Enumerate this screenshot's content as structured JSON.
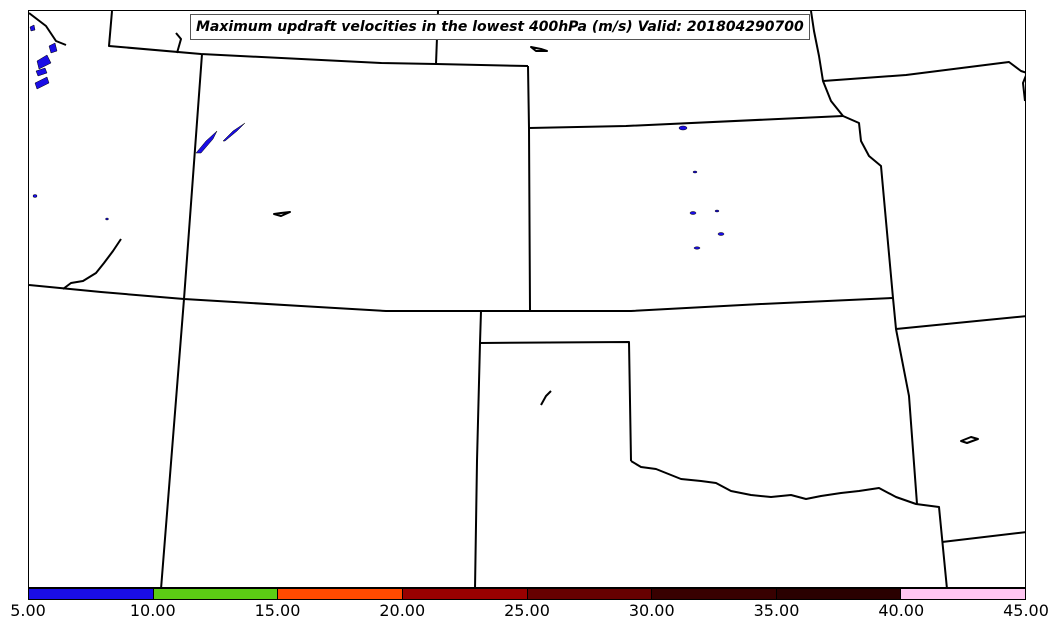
{
  "title": "Maximum updraft velocities in the lowest 400hPa (m/s) Valid: 201804290700",
  "colorbar": {
    "ticks": [
      "5.00",
      "10.00",
      "15.00",
      "20.00",
      "25.00",
      "30.00",
      "35.00",
      "40.00",
      "45.00"
    ],
    "colors": [
      "#1a0de6",
      "#5ccc14",
      "#ff4a00",
      "#990000",
      "#660000",
      "#380000",
      "#2a0000",
      "#ffc6f2",
      "#ffe6fb"
    ]
  }
}
